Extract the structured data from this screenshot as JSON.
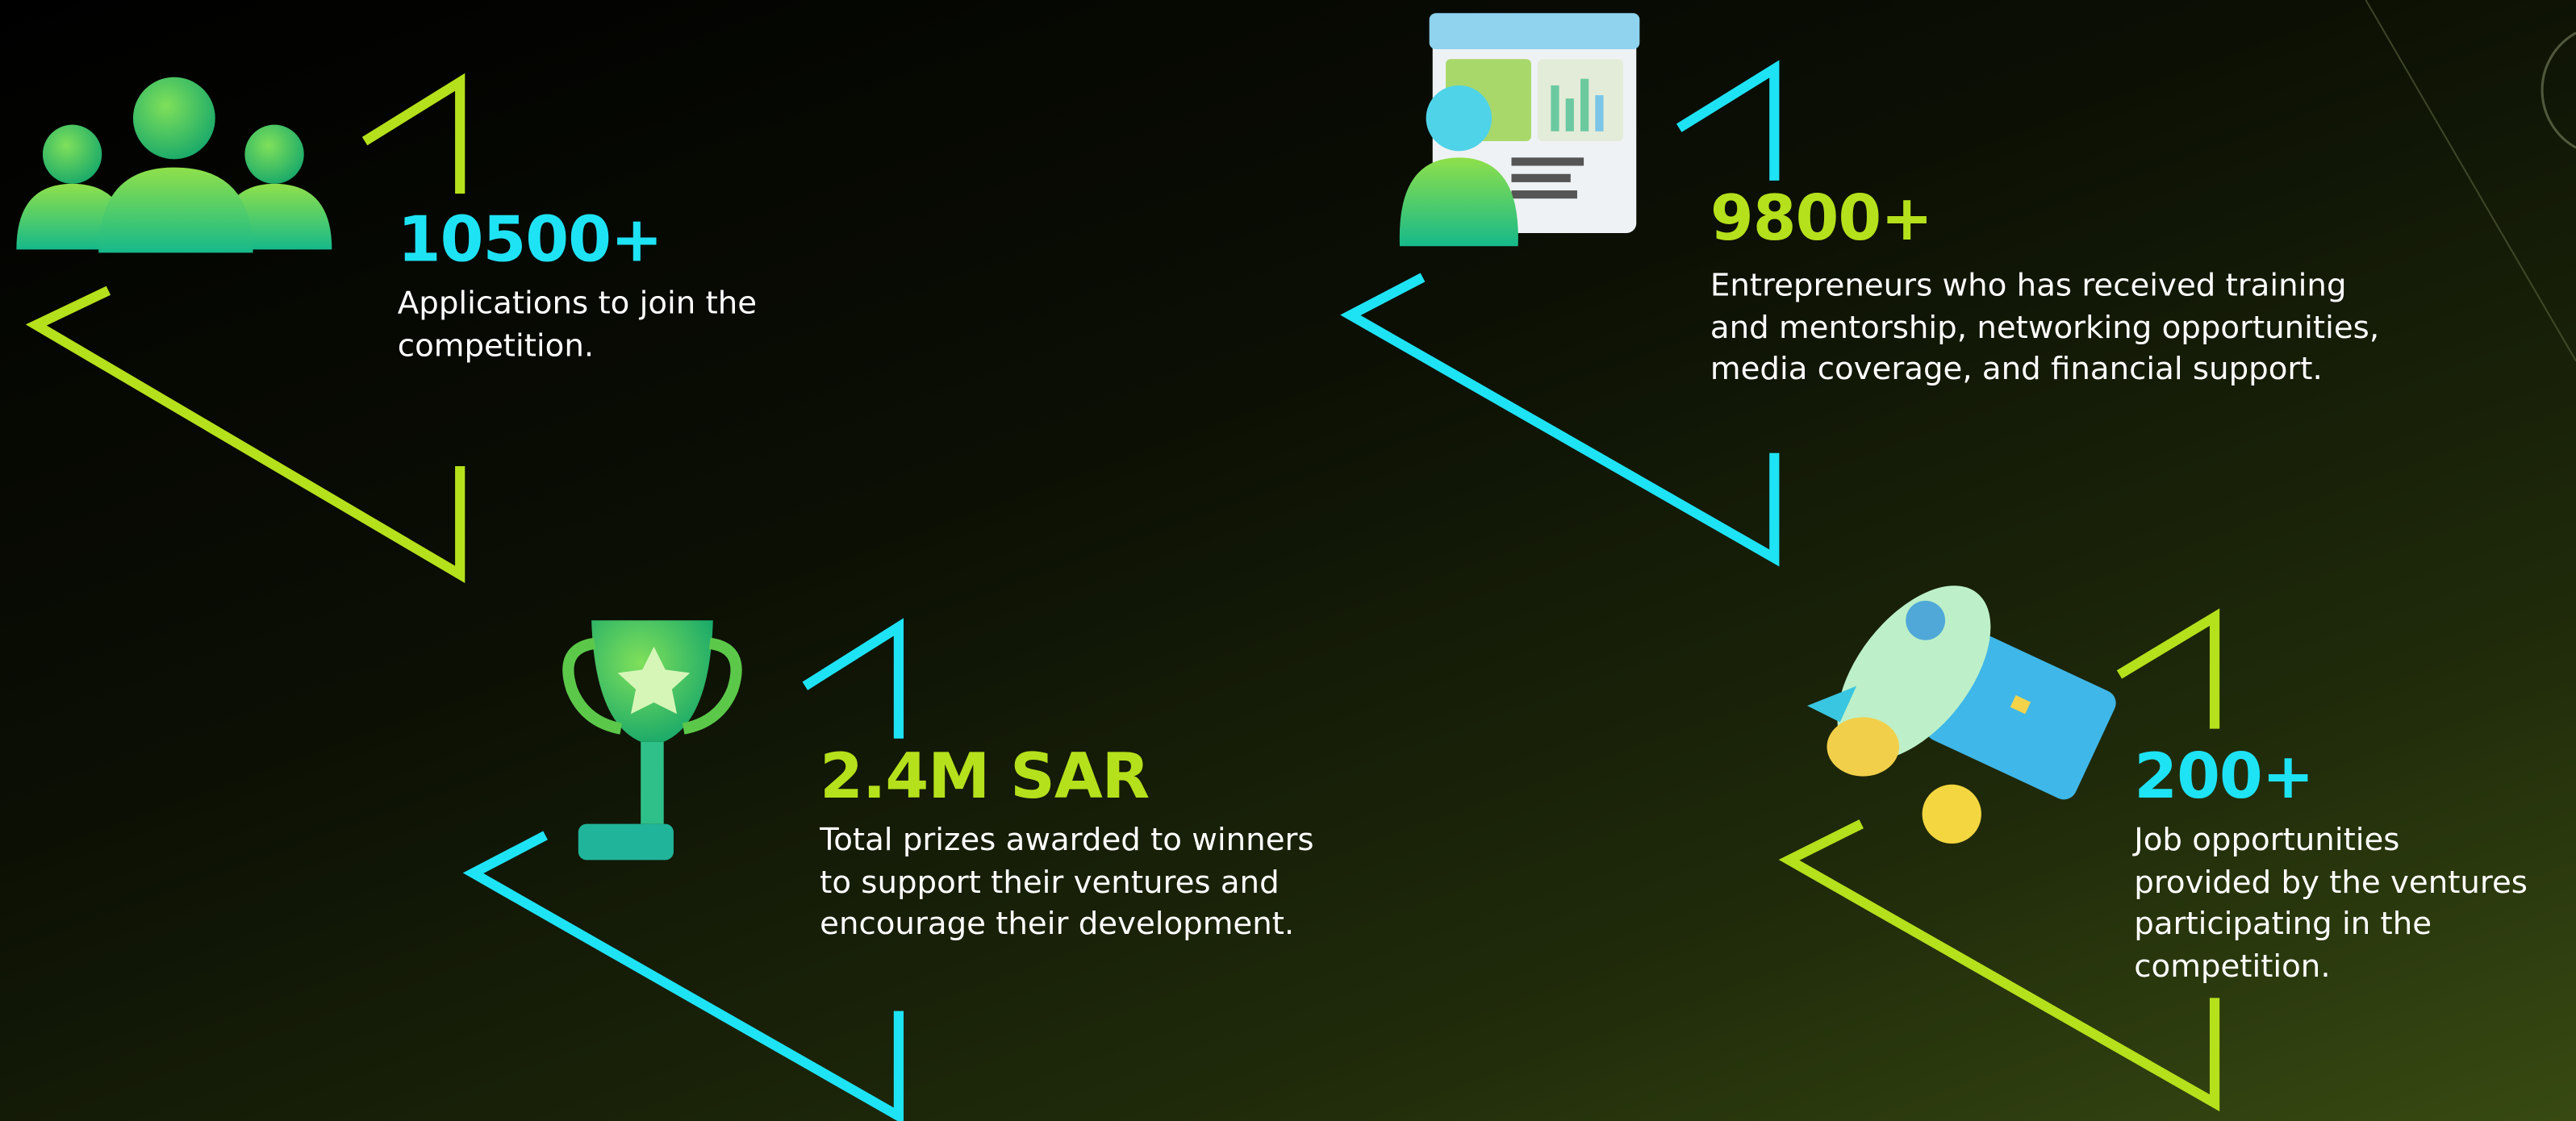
{
  "stats": [
    {
      "value": "10500+",
      "description_lines": [
        "Applications to join the",
        "competition."
      ]
    },
    {
      "value": "9800+",
      "description_lines": [
        "Entrepreneurs who has received training",
        "and mentorship, networking opportunities,",
        "media coverage, and financial support."
      ]
    },
    {
      "value": "2.4M SAR",
      "description_lines": [
        "Total prizes awarded to winners",
        "to support their ventures and",
        "encourage their development."
      ]
    },
    {
      "value": "200+",
      "description_lines": [
        "Job opportunities",
        "provided by the ventures",
        "participating in the",
        "competition."
      ]
    }
  ]
}
